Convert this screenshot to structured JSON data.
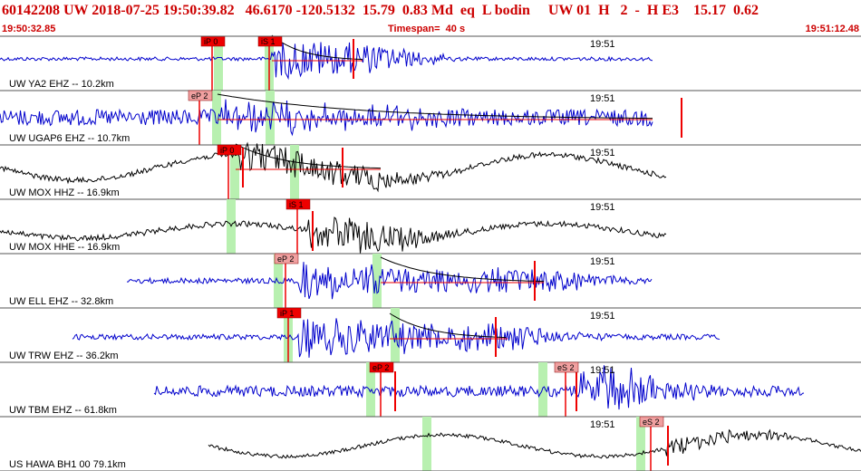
{
  "header": {
    "event_line": "60142208 UW 2018-07-25 19:50:39.82   46.6170 -120.5132  15.79  0.83 Md  eq  L bodin     UW 01  H   2  -  H E3    15.17  0.62",
    "start_time": "19:50:32.85",
    "timespan": "Timespan=  40 s",
    "end_time": "19:51:12.48"
  },
  "colors": {
    "header_text": "#cc0000",
    "blue_trace": "#0000cc",
    "black_trace": "#000000",
    "pick_box": "#ee0000",
    "pick_box_light": "#f0a0a0",
    "window_green": "#b8f0b0",
    "separator": "#555555"
  },
  "panels": [
    {
      "label": "UW YA2 EHZ -- 10.2km",
      "tick_label": "19:51",
      "color": "blue",
      "picks": [
        {
          "label": "iP 0"
        },
        {
          "label": "iS 1"
        }
      ]
    },
    {
      "label": "UW UGAP6 EHZ -- 10.7km",
      "tick_label": "19:51",
      "color": "blue",
      "picks": [
        {
          "label": "eP 2"
        }
      ]
    },
    {
      "label": "UW MOX HHZ -- 16.9km",
      "tick_label": "19:51",
      "color": "black",
      "picks": [
        {
          "label": "iP 0"
        }
      ]
    },
    {
      "label": "UW MOX HHE -- 16.9km",
      "tick_label": "19:51",
      "color": "black",
      "picks": [
        {
          "label": "iS 1"
        }
      ]
    },
    {
      "label": "UW ELL EHZ -- 32.8km",
      "tick_label": "19:51",
      "color": "blue",
      "picks": [
        {
          "label": "eP 2"
        }
      ]
    },
    {
      "label": "UW TRW EHZ -- 36.2km",
      "tick_label": "19:51",
      "color": "blue",
      "picks": [
        {
          "label": "iP 1"
        }
      ]
    },
    {
      "label": "UW TBM EHZ -- 61.8km",
      "tick_label": "19:51",
      "color": "blue",
      "picks": [
        {
          "label": "eP 2"
        },
        {
          "label": "eS 2"
        }
      ]
    },
    {
      "label": "US HAWA BH1 00 79.1km",
      "tick_label": "19:51",
      "color": "black",
      "picks": [
        {
          "label": "eS 2"
        }
      ]
    }
  ]
}
